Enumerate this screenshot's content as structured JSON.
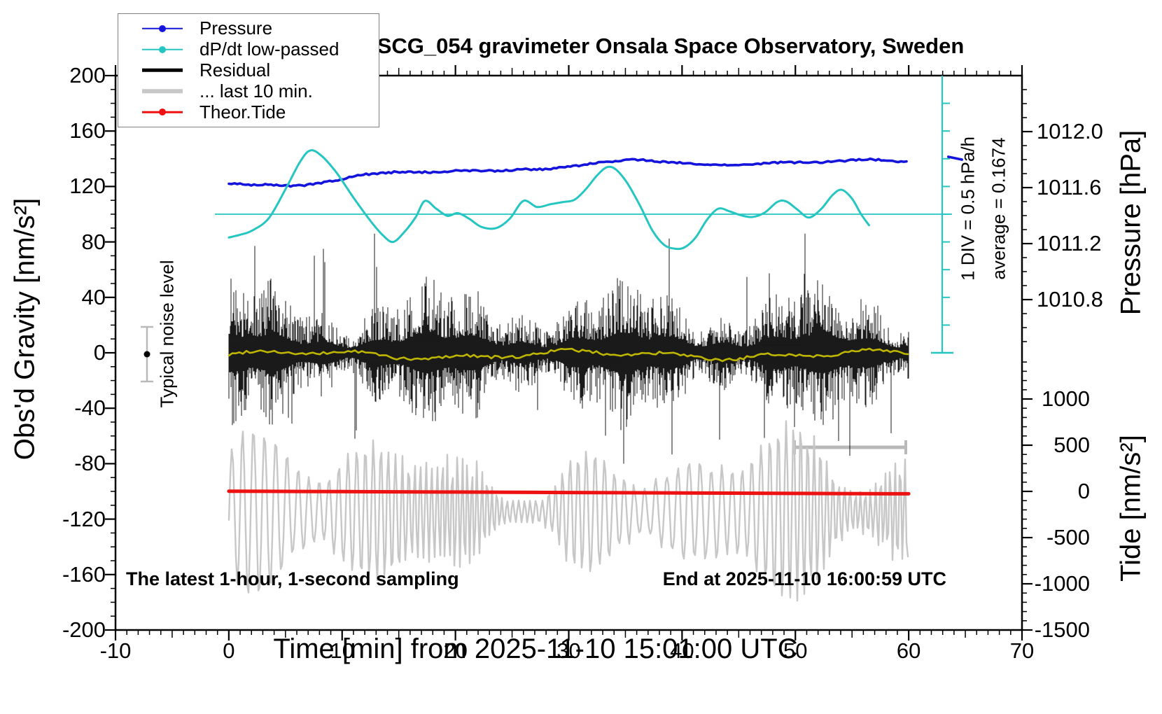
{
  "title": "SCG_054 gravimeter Onsala Space Observatory, Sweden",
  "legend": {
    "items": [
      {
        "label": "Pressure",
        "color": "#1414dc",
        "thickness": 2.5,
        "marker": "dot"
      },
      {
        "label": "dP/dt low-passed",
        "color": "#25c6c2",
        "thickness": 2.5,
        "marker": "dot"
      },
      {
        "label": "Residual",
        "color": "#000000",
        "thickness": 4.5,
        "marker": "none"
      },
      {
        "label": "... last 10 min.",
        "color": "#c7c7c7",
        "thickness": 5.5,
        "marker": "none"
      },
      {
        "label": "Theor.Tide",
        "color": "#ee1111",
        "thickness": 2.5,
        "marker": "dot"
      }
    ]
  },
  "annotations": {
    "noise_level": "Typical noise level",
    "div_scale": "1 DIV = 0.5 hPa/h",
    "average": "average = 0.1674",
    "sampling": "The latest 1-hour, 1-second sampling",
    "end_time": "End at 2025-11-10 16:00:59 UTC"
  },
  "axes": {
    "x": {
      "label": "Time [min] from 2025-11-10 15:01:00 UTC",
      "min": -10,
      "max": 70,
      "major_step": 10,
      "minor_step": 1,
      "tick_labels": [
        {
          "t": "-10",
          "v": -10
        },
        {
          "t": "0",
          "v": 0
        },
        {
          "t": "10",
          "v": 10
        },
        {
          "t": "20",
          "v": 20
        },
        {
          "t": "30",
          "v": 30
        },
        {
          "t": "40",
          "v": 40
        },
        {
          "t": "50",
          "v": 50
        },
        {
          "t": "60",
          "v": 60
        },
        {
          "t": "70",
          "v": 70
        }
      ]
    },
    "gravity": {
      "label": "Obs'd Gravity [nm/s²]",
      "min": -200,
      "max": 200,
      "major_step": 40,
      "minor_step": 10,
      "tick_labels": [
        {
          "t": "200",
          "v": 200
        },
        {
          "t": "160",
          "v": 160
        },
        {
          "t": "120",
          "v": 120
        },
        {
          "t": "80",
          "v": 80
        },
        {
          "t": "40",
          "v": 40
        },
        {
          "t": "0",
          "v": 0
        },
        {
          "t": "-40",
          "v": -40
        },
        {
          "t": "-80",
          "v": -80
        },
        {
          "t": "-120",
          "v": -120
        },
        {
          "t": "-160",
          "v": -160
        },
        {
          "t": "-200",
          "v": -200
        }
      ]
    },
    "pressure": {
      "label": "Pressure [hPa]",
      "min": 1010.4,
      "max": 1012.4,
      "major_step": 0.4,
      "minor_step": 0.1,
      "tick_labels": [
        {
          "t": "1012.0",
          "v": 1012.0
        },
        {
          "t": "1011.6",
          "v": 1011.6
        },
        {
          "t": "1011.2",
          "v": 1011.2
        },
        {
          "t": "1010.8",
          "v": 1010.8
        }
      ]
    },
    "tide": {
      "label": "Tide [nm/s²]",
      "min": -1500,
      "max": 1500,
      "major_step": 500,
      "minor_step": 100,
      "tick_labels": [
        {
          "t": "1000",
          "v": 1000
        },
        {
          "t": "500",
          "v": 500
        },
        {
          "t": "0",
          "v": 0
        },
        {
          "t": "-500",
          "v": -500
        },
        {
          "t": "-1000",
          "v": -1000
        },
        {
          "t": "-1500",
          "v": -1500
        }
      ]
    }
  },
  "colors": {
    "pressure": "#1414dc",
    "dpdt": "#25c6c2",
    "residual": "#000000",
    "residual_smoothed": "#bdb500",
    "last10": "#c7c7c7",
    "theor_tide": "#ee1111",
    "frame": "#000000",
    "marker_gray": "#b9b9b9"
  },
  "chart_data": {
    "type": "line",
    "title": "SCG_054 gravimeter Onsala Space Observatory, Sweden",
    "xlabel": "Time [min] from 2025-11-10 15:01:00 UTC",
    "x_range": [
      -10,
      70
    ],
    "series": [
      {
        "name": "Pressure",
        "axis": "pressure_hPa",
        "ylim": [
          1010.4,
          1012.4
        ],
        "t": [
          0,
          2,
          4,
          5.5,
          7,
          8.5,
          10,
          11.5,
          13,
          14.5,
          16,
          18,
          20,
          22,
          24,
          26,
          28,
          30,
          32,
          34,
          36,
          37.5,
          39,
          41,
          43,
          45,
          47,
          48.5,
          50,
          52,
          54,
          55.5,
          57,
          58.5,
          60
        ],
        "v": [
          1011.63,
          1011.62,
          1011.62,
          1011.61,
          1011.62,
          1011.64,
          1011.66,
          1011.69,
          1011.7,
          1011.71,
          1011.71,
          1011.71,
          1011.72,
          1011.72,
          1011.72,
          1011.73,
          1011.73,
          1011.75,
          1011.77,
          1011.79,
          1011.8,
          1011.79,
          1011.78,
          1011.77,
          1011.76,
          1011.76,
          1011.77,
          1011.78,
          1011.78,
          1011.78,
          1011.79,
          1011.8,
          1011.8,
          1011.79,
          1011.78
        ]
      },
      {
        "name": "Pressure tail fragment",
        "axis": "pressure_hPa",
        "t": [
          63.5,
          64.7
        ],
        "v": [
          1011.82,
          1011.8
        ]
      },
      {
        "name": "dP/dt low-passed",
        "axis": "hPa_per_h",
        "zero_line": 0,
        "div_value": 0.5,
        "divisions": 10,
        "range": [
          -2.5,
          2.5
        ],
        "average": 0.1674,
        "t": [
          0,
          1,
          2,
          3.5,
          5,
          6.3,
          7.2,
          8.2,
          9.5,
          11,
          12.5,
          13.6,
          14.5,
          15.5,
          16.5,
          17.3,
          18.3,
          19.3,
          20.2,
          21.2,
          22.3,
          23.6,
          24.8,
          26,
          27.2,
          28.4,
          29.5,
          30.5,
          31.5,
          32.5,
          33.4,
          34.2,
          35.2,
          36.3,
          37.4,
          38.4,
          39.3,
          40.2,
          41.2,
          42.2,
          43.2,
          44.2,
          45.2,
          46.2,
          47.3,
          48.4,
          49.2,
          50.2,
          51.2,
          52.3,
          53.3,
          54.1,
          55,
          55.8,
          56.5
        ],
        "v": [
          -0.42,
          -0.37,
          -0.3,
          -0.08,
          0.45,
          0.95,
          1.15,
          1.05,
          0.75,
          0.3,
          -0.12,
          -0.38,
          -0.5,
          -0.32,
          -0.05,
          0.24,
          0.1,
          -0.03,
          0.02,
          -0.08,
          -0.23,
          -0.25,
          -0.08,
          0.24,
          0.13,
          0.18,
          0.22,
          0.26,
          0.45,
          0.7,
          0.85,
          0.8,
          0.55,
          0.15,
          -0.3,
          -0.55,
          -0.62,
          -0.6,
          -0.42,
          -0.1,
          0.1,
          0.05,
          -0.02,
          -0.05,
          0.03,
          0.22,
          0.23,
          0.08,
          -0.06,
          0.1,
          0.35,
          0.44,
          0.28,
          0,
          -0.2
        ]
      },
      {
        "name": "Theor.Tide",
        "axis": "tide_nms2",
        "t": [
          0,
          10,
          20,
          30,
          40,
          50,
          60
        ],
        "v": [
          2,
          -2,
          -7,
          -12,
          -17,
          -22,
          -26
        ]
      },
      {
        "name": "Residual",
        "axis": "gravity_nms2",
        "t_range": [
          0,
          60
        ],
        "mean": 0,
        "typical_band_halfwidth": 30,
        "max_excursions": [
          -80,
          85
        ],
        "representation": "noise-band"
      },
      {
        "name": "Residual smoothed (yellow overlay)",
        "axis": "gravity_nms2",
        "t_range": [
          0,
          60
        ],
        "mean": -1.5,
        "wiggle_amplitude": 4,
        "representation": "noisy-flat-line"
      },
      {
        "name": "Residual last 10 min (time-magnified, gray)",
        "axis": "gravity_nms2",
        "t_range": [
          0,
          60
        ],
        "center": -114,
        "amplitude_range": [
          10,
          66
        ],
        "apparent_period_min": 0.8,
        "representation": "oscillation"
      }
    ],
    "markers": {
      "noise_level_bar": {
        "t": -7.2,
        "gravity_center": 0,
        "gravity_half_range": 20
      },
      "last10_window_bar": {
        "t_range": [
          50,
          60
        ],
        "gravity": -68
      },
      "dpdt_zero_line": {
        "t_range": [
          -1.2,
          63.6
        ],
        "value": 0
      }
    }
  }
}
